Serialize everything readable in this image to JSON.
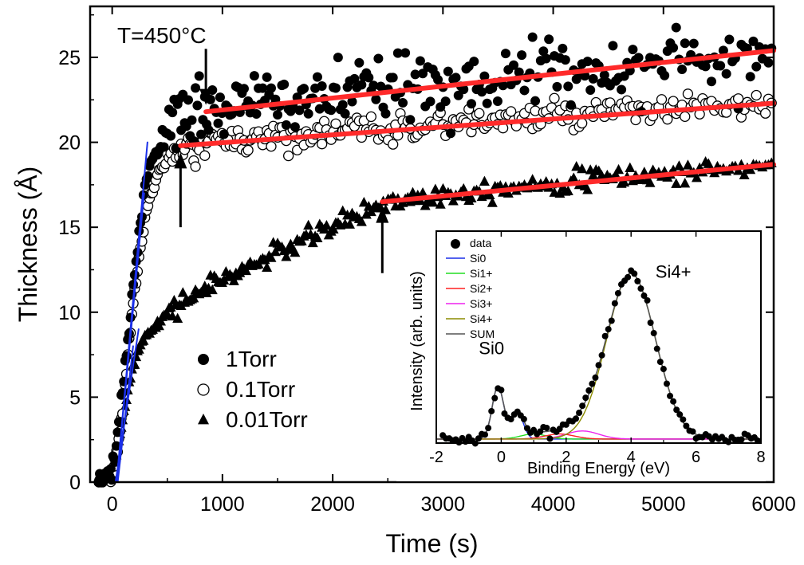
{
  "chart_data": [
    {
      "type": "scatter",
      "title": "",
      "xlabel": "Time (s)",
      "ylabel": "Thickness (Å)",
      "xlim": [
        -200,
        6000
      ],
      "ylim": [
        0,
        28
      ],
      "xticks": [
        0,
        1000,
        2000,
        3000,
        4000,
        5000,
        6000
      ],
      "yticks": [
        0,
        5,
        10,
        15,
        20,
        25
      ],
      "annotation": "T=450°C",
      "legend_position": "center-left",
      "series": [
        {
          "name": "1Torr",
          "marker": "filled-circle",
          "profile": {
            "x": [
              -120,
              0,
              50,
              100,
              150,
              200,
              250,
              300,
              350,
              420,
              500,
              600,
              700,
              800,
              900,
              1200,
              1500,
              2000,
              2500,
              3000,
              3500,
              4000,
              4500,
              5000,
              5500,
              6000
            ],
            "y": [
              0,
              0.5,
              2.5,
              5.5,
              9,
              12,
              15,
              17.5,
              19,
              20,
              20.5,
              21,
              21.4,
              21.8,
              22,
              22.2,
              22.4,
              22.7,
              23.1,
              23.5,
              23.8,
              24.1,
              24.4,
              24.7,
              25,
              25.3
            ]
          },
          "noise": 0.9,
          "point_count": 300
        },
        {
          "name": "0.1Torr",
          "marker": "open-circle",
          "profile": {
            "x": [
              -120,
              0,
              50,
              100,
              150,
              200,
              250,
              300,
              350,
              420,
              500,
              600,
              700,
              800,
              900,
              1200,
              1500,
              2000,
              2500,
              3000,
              3500,
              4000,
              4500,
              5000,
              5500,
              6000
            ],
            "y": [
              0,
              0.5,
              2,
              4.5,
              8,
              11,
              13.5,
              15.5,
              17,
              18.2,
              18.8,
              19.3,
              19.6,
              19.8,
              20,
              20.2,
              20.4,
              20.6,
              20.8,
              21.1,
              21.3,
              21.5,
              21.7,
              21.9,
              22.1,
              22.2
            ]
          },
          "noise": 0.4,
          "point_count": 300
        },
        {
          "name": "0.01Torr",
          "marker": "filled-triangle",
          "profile": {
            "x": [
              -120,
              0,
              50,
              100,
              150,
              200,
              250,
              300,
              400,
              500,
              600,
              800,
              1000,
              1200,
              1500,
              1800,
              2000,
              2200,
              2400,
              2500,
              3000,
              3500,
              4000,
              4500,
              5000,
              5500,
              6000
            ],
            "y": [
              0,
              0.5,
              2,
              4,
              5.8,
              7,
              8,
              8.6,
              9.3,
              9.9,
              10.4,
              11.2,
              11.9,
              12.5,
              13.5,
              14.4,
              15,
              15.6,
              16.2,
              16.5,
              16.9,
              17.3,
              17.6,
              17.9,
              18.1,
              18.4,
              18.6
            ]
          },
          "noise": 0.3,
          "point_count": 300
        }
      ],
      "fit_lines": [
        {
          "color": "#ff2a2a",
          "x": [
            850,
            6000
          ],
          "y": [
            21.8,
            25.4
          ]
        },
        {
          "color": "#ff2a2a",
          "x": [
            620,
            6000
          ],
          "y": [
            19.8,
            22.3
          ]
        },
        {
          "color": "#ff2a2a",
          "x": [
            2450,
            6000
          ],
          "y": [
            16.5,
            18.7
          ]
        },
        {
          "color": "#1a2fe8",
          "x": [
            40,
            320
          ],
          "y": [
            0,
            20
          ]
        },
        {
          "color": "#1a2fe8",
          "x": [
            40,
            290
          ],
          "y": [
            0,
            17
          ]
        },
        {
          "color": "#1a2fe8",
          "x": [
            30,
            240
          ],
          "y": [
            0,
            9
          ]
        },
        {
          "color": "#1a2fe8",
          "x": [
            50,
            190
          ],
          "y": [
            0,
            8
          ]
        }
      ],
      "arrows": [
        {
          "x": 850,
          "y_from": 25.5,
          "y_to": 22.2,
          "direction": "down"
        },
        {
          "x": 620,
          "y_from": 15,
          "y_to": 19.4,
          "direction": "up"
        },
        {
          "x": 2450,
          "y_from": 12.3,
          "y_to": 16.2,
          "direction": "up"
        }
      ]
    },
    {
      "type": "line",
      "title": "",
      "xlabel": "Binding Energy (eV)",
      "ylabel": "Intensity (arb. units)",
      "xlim": [
        -2,
        8
      ],
      "xticks": [
        -2,
        0,
        2,
        4,
        6,
        8
      ],
      "ylim": [
        0,
        1.05
      ],
      "baseline": 0.02,
      "legend_position": "top-left",
      "annotations": [
        {
          "text": "Si0",
          "x": -0.3,
          "y": 0.44
        },
        {
          "text": "Si4+",
          "x": 5.3,
          "y": 0.82
        }
      ],
      "components": [
        {
          "name": "Si0",
          "color": "#1a2fe8",
          "peaks": [
            {
              "center": -0.1,
              "amp": 0.26,
              "sigma": 0.18
            },
            {
              "center": 0.5,
              "amp": 0.13,
              "sigma": 0.18
            }
          ]
        },
        {
          "name": "Si1+",
          "color": "#22dd22",
          "peaks": [
            {
              "center": 1.0,
              "amp": 0.025,
              "sigma": 0.4
            }
          ]
        },
        {
          "name": "Si2+",
          "color": "#ff2020",
          "peaks": [
            {
              "center": 1.8,
              "amp": 0.025,
              "sigma": 0.45
            }
          ]
        },
        {
          "name": "Si3+",
          "color": "#ee22ee",
          "peaks": [
            {
              "center": 2.5,
              "amp": 0.04,
              "sigma": 0.5
            }
          ]
        },
        {
          "name": "Si4+",
          "color": "#8c8c00",
          "peaks": [
            {
              "center": 4.0,
              "amp": 0.82,
              "sigma": 0.75
            }
          ]
        },
        {
          "name": "SUM",
          "color": "#555555",
          "sum": true
        }
      ],
      "data_series": {
        "name": "data",
        "marker": "filled-circle",
        "x_start": -1.8,
        "x_end": 7.9,
        "step": 0.1,
        "noise": 0.012
      }
    }
  ]
}
